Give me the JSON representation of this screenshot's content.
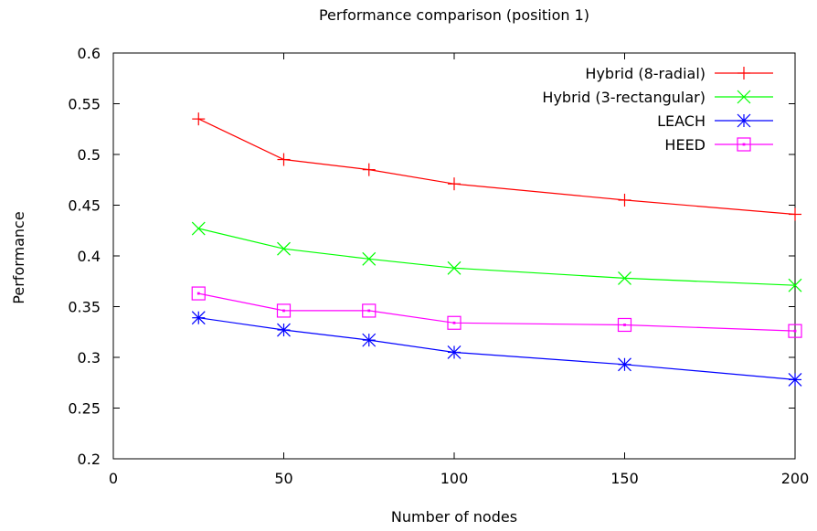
{
  "chart_data": {
    "type": "line",
    "title": "Performance comparison (position 1)",
    "xlabel": "Number of nodes",
    "ylabel": "Performance",
    "xlim": [
      0,
      200
    ],
    "ylim": [
      0.2,
      0.6
    ],
    "x_ticks": [
      0,
      50,
      100,
      150,
      200
    ],
    "x_tick_labels": [
      "0",
      "50",
      "100",
      "150",
      "200"
    ],
    "y_ticks": [
      0.2,
      0.25,
      0.3,
      0.35,
      0.4,
      0.45,
      0.5,
      0.55,
      0.6
    ],
    "y_tick_labels": [
      "0.2",
      "0.25",
      "0.3",
      "0.35",
      "0.4",
      "0.45",
      "0.5",
      "0.55",
      "0.6"
    ],
    "grid": false,
    "legend_position": "top-right",
    "x": [
      25,
      50,
      75,
      100,
      150,
      200
    ],
    "series": [
      {
        "name": "Hybrid (8-radial)",
        "color": "#ff0000",
        "marker": "plus",
        "values": [
          0.535,
          0.495,
          0.485,
          0.471,
          0.455,
          0.441
        ]
      },
      {
        "name": "Hybrid (3-rectangular)",
        "color": "#00ff00",
        "marker": "cross",
        "values": [
          0.427,
          0.407,
          0.397,
          0.388,
          0.378,
          0.371
        ]
      },
      {
        "name": "LEACH",
        "color": "#0000ff",
        "marker": "star",
        "values": [
          0.339,
          0.327,
          0.317,
          0.305,
          0.293,
          0.278
        ]
      },
      {
        "name": "HEED",
        "color": "#ff00ff",
        "marker": "square",
        "values": [
          0.363,
          0.346,
          0.346,
          0.334,
          0.332,
          0.326
        ]
      }
    ]
  }
}
